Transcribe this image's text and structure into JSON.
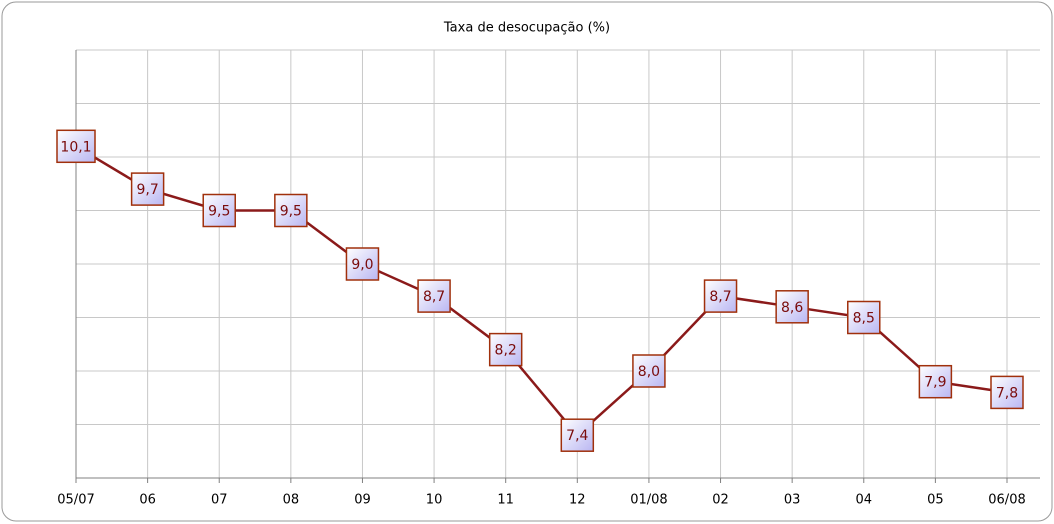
{
  "chart_data": {
    "type": "line",
    "title": "Taxa de desocupação (%)",
    "categories": [
      "05/07",
      "06",
      "07",
      "08",
      "09",
      "10",
      "11",
      "12",
      "01/08",
      "02",
      "03",
      "04",
      "05",
      "06/08"
    ],
    "values": [
      10.1,
      9.7,
      9.5,
      9.5,
      9.0,
      8.7,
      8.2,
      7.4,
      8.0,
      8.7,
      8.6,
      8.5,
      7.9,
      7.8
    ],
    "value_labels": [
      "10,1",
      "9,7",
      "9,5",
      "9,5",
      "9,0",
      "8,7",
      "8,2",
      "7,4",
      "8,0",
      "8,7",
      "8,6",
      "8,5",
      "7,9",
      "7,8"
    ],
    "color": "#8b1a1a",
    "ylim": [
      7,
      11
    ],
    "yticks": [
      7,
      7.5,
      8,
      8.5,
      9,
      9.5,
      10,
      10.5,
      11
    ],
    "grid": true
  }
}
